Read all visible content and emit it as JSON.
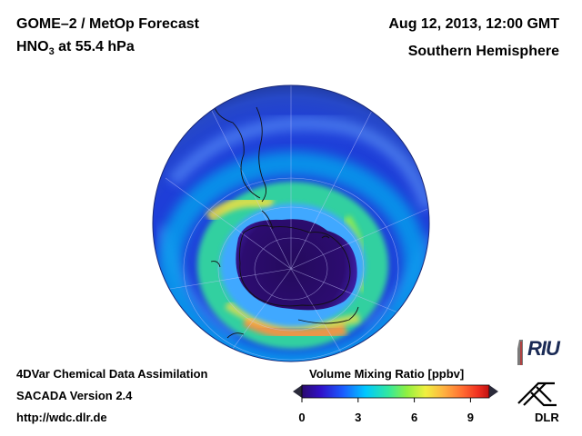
{
  "header": {
    "title_line1": "GOME–2 / MetOp Forecast",
    "title_species": "HNO",
    "title_subscript": "3",
    "title_suffix": " at 55.4 hPa",
    "datetime": "Aug 12, 2013, 12:00 GMT",
    "region": "Southern Hemisphere"
  },
  "footer": {
    "line1": "4DVar Chemical Data Assimilation",
    "line2": "SACADA Version 2.4",
    "line3": "http://wdc.dlr.de"
  },
  "colorbar": {
    "title": "Volume Mixing Ratio [ppbv]",
    "ticks": [
      "0",
      "3",
      "6",
      "9"
    ],
    "min": 0,
    "max": 10,
    "tick_values": [
      0,
      3,
      6,
      9
    ]
  },
  "logos": {
    "riu": "RIU",
    "dlr": "DLR"
  },
  "map": {
    "projection": "orthographic, south polar view",
    "variable": "HNO3 volume mixing ratio",
    "pressure_level": "55.4 hPa",
    "colors": {
      "background": "#ffffff",
      "outside_band": "#1e3cd6",
      "polar_core": "#2a0a6e"
    }
  }
}
